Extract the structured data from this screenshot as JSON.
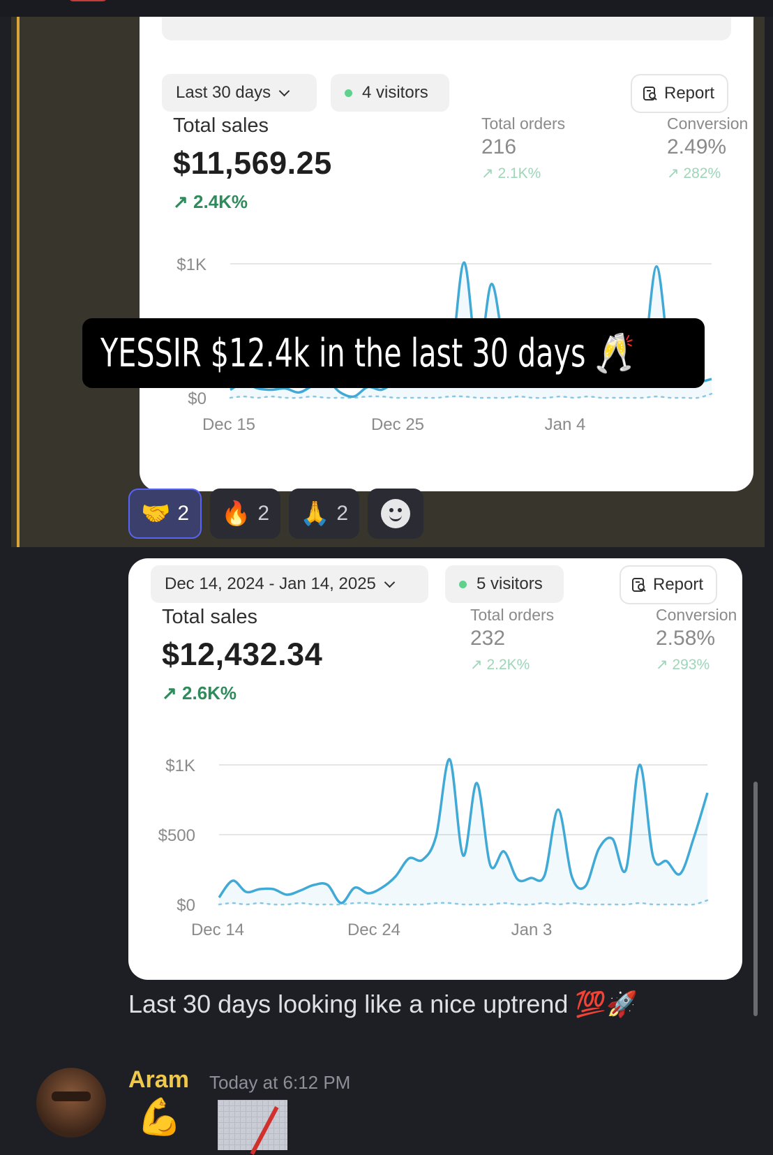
{
  "colors": {
    "accent_line": "#41a9d6",
    "green": "#2f8a5c",
    "visitor_dot": "#5ed28c",
    "mention_bar": "#d9a53a",
    "author": "#f0c94b"
  },
  "card1": {
    "date_range": "Last 30 days",
    "visitors": "4 visitors",
    "report": "Report",
    "total_sales_label": "Total sales",
    "total_sales_value": "$11,569.25",
    "total_sales_delta": "2.4K%",
    "orders_label": "Total orders",
    "orders_value": "216",
    "orders_delta": "2.1K%",
    "conversion_label": "Conversion",
    "conversion_value": "2.49%",
    "conversion_delta": "282%"
  },
  "caption": "YESSIR $12.4k in the last 30 days 🥂",
  "reactions": [
    {
      "emoji": "🤝",
      "count": "2"
    },
    {
      "emoji": "🔥",
      "count": "2"
    },
    {
      "emoji": "🙏",
      "count": "2"
    }
  ],
  "card2": {
    "date_range": "Dec 14, 2024 - Jan 14, 2025",
    "visitors": "5 visitors",
    "report": "Report",
    "total_sales_label": "Total sales",
    "total_sales_value": "$12,432.34",
    "total_sales_delta": "2.6K%",
    "orders_label": "Total orders",
    "orders_value": "232",
    "orders_delta": "2.2K%",
    "conversion_label": "Conversion",
    "conversion_value": "2.58%",
    "conversion_delta": "293%"
  },
  "message_text": "Last 30 days looking like a nice uptrend 💯🚀",
  "next_message": {
    "author": "Aram",
    "time": "Today at 6:12 PM",
    "emoji": "💪"
  },
  "chart_data": [
    {
      "type": "line",
      "y_ticks": [
        "$0",
        "$1K"
      ],
      "x_ticks": [
        "Dec 15",
        "Dec 25",
        "Jan 4"
      ],
      "ylim": [
        0,
        1000
      ],
      "series": [
        {
          "values": [
            60,
            110,
            70,
            60,
            70,
            40,
            90,
            130,
            40,
            10,
            80,
            60,
            120,
            180,
            230,
            320,
            250,
            1010,
            280,
            850,
            330,
            200,
            200,
            170,
            230,
            570,
            150,
            100,
            230,
            400,
            260,
            980,
            250,
            160,
            120,
            140
          ]
        }
      ]
    },
    {
      "type": "line",
      "y_ticks": [
        "$0",
        "$500",
        "$1K"
      ],
      "x_ticks": [
        "Dec 14",
        "Dec 24",
        "Jan 3"
      ],
      "ylim": [
        0,
        1000
      ],
      "series": [
        {
          "values": [
            50,
            170,
            90,
            110,
            110,
            70,
            100,
            140,
            140,
            10,
            120,
            80,
            120,
            200,
            330,
            320,
            490,
            1040,
            350,
            870,
            280,
            380,
            180,
            190,
            210,
            680,
            200,
            130,
            400,
            470,
            250,
            1000,
            340,
            310,
            220,
            480,
            800
          ]
        }
      ]
    }
  ]
}
